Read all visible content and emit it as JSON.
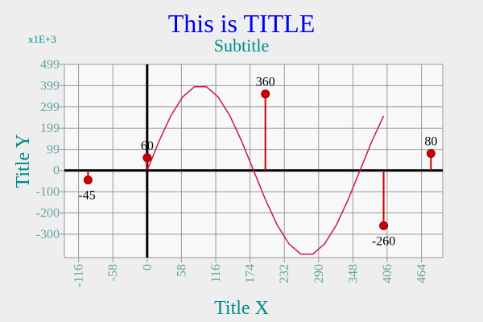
{
  "chart_data": {
    "type": "line",
    "title": "This is TITLE",
    "subtitle": "Subtitle",
    "xlabel": "Title X",
    "ylabel": "Title Y",
    "y_multiplier": "x1E+3",
    "xlim": [
      -140,
      500
    ],
    "ylim": [
      -410,
      499
    ],
    "x_ticks": [
      "-116",
      "-58",
      "0",
      "58",
      "116",
      "174",
      "232",
      "290",
      "348",
      "406",
      "464"
    ],
    "y_ticks": [
      "499",
      "399",
      "299",
      "199",
      "99",
      "0",
      "-100",
      "-200",
      "-300"
    ],
    "grid": true,
    "series": [
      {
        "x": [
          0,
          20,
          40,
          60,
          80,
          100,
          120,
          140,
          160,
          180,
          200,
          220,
          240,
          260,
          280,
          300,
          320,
          340,
          360,
          380,
          400
        ],
        "values": [
          0,
          137,
          257,
          346,
          394,
          394,
          346,
          257,
          137,
          0,
          -137,
          -257,
          -346,
          -394,
          -394,
          -346,
          -257,
          -137,
          0,
          137,
          257
        ]
      },
      {
        "type": "stem",
        "x": [
          -100,
          0,
          200,
          400,
          480
        ],
        "values": [
          -45,
          60,
          360,
          -260,
          80
        ],
        "labels": [
          "-45",
          "60",
          "360",
          "-260",
          "80"
        ]
      }
    ]
  },
  "colors": {
    "background": "#eeeeee",
    "plot_bg": "#f8f8f8",
    "title": "#0000ee",
    "subtitle": "#008b8b",
    "axis_text": "#008b8b",
    "tick_text": "#66a3a3",
    "grid": "#999999",
    "curve": "#cc1166",
    "stem": "#cc0000",
    "marker": "#cc0000"
  }
}
